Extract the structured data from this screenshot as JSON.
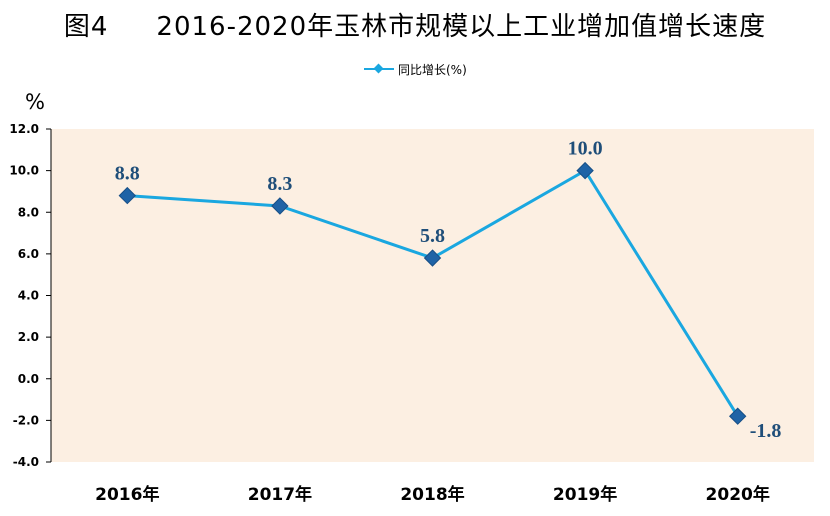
{
  "title": {
    "figure_no": "图4",
    "text": "2016-2020年玉林市规模以上工业增加值增长速度"
  },
  "unit_label": "%",
  "colors": {
    "plot_background": "#fcefe2",
    "line": "#1aa7e0",
    "marker": "#1f63a6",
    "label": "#1f4e79"
  },
  "chart_data": {
    "type": "line",
    "categories": [
      "2016年",
      "2017年",
      "2018年",
      "2019年",
      "2020年"
    ],
    "series": [
      {
        "name": "同比增长(%)",
        "values": [
          8.8,
          8.3,
          5.8,
          10.0,
          -1.8
        ]
      }
    ],
    "data_labels": [
      "8.8",
      "8.3",
      "5.8",
      "10.0",
      "-1.8"
    ],
    "yticks": [
      "12.0",
      "10.0",
      "8.0",
      "6.0",
      "4.0",
      "2.0",
      "0.0",
      "-2.0",
      "-4.0"
    ],
    "ylim": [
      -4,
      12
    ],
    "grid": false,
    "legend_position": "top-center"
  }
}
